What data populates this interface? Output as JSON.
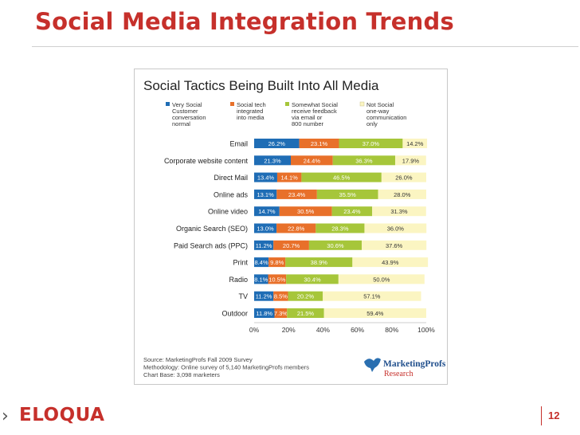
{
  "slide": {
    "title": "Social Media Integration Trends",
    "brand": "ELOQUA",
    "page_number": "12"
  },
  "colors": {
    "title_red": "#c6302b",
    "very_social": "#1f6db5",
    "social_tech": "#e8702a",
    "somewhat_social": "#a6c63a",
    "not_social": "#fbf5c2"
  },
  "icons": {
    "footer_chevron": "chevron-right-icon",
    "research_bird": "bird-icon"
  },
  "chart_data": {
    "type": "bar",
    "orientation": "horizontal",
    "stacked": true,
    "title": "Social Tactics Being Built Into All Media",
    "categories": [
      "Email",
      "Corporate website content",
      "Direct Mail",
      "Online ads",
      "Online video",
      "Organic Search (SEO)",
      "Paid Search ads (PPC)",
      "Print",
      "Radio",
      "TV",
      "Outdoor"
    ],
    "series": [
      {
        "name": "Very Social Customer conversation normal",
        "legend_lines": [
          "Very Social",
          "Customer",
          "conversation",
          "normal"
        ],
        "color": "#1f6db5",
        "values": [
          26.2,
          21.3,
          13.4,
          13.1,
          14.7,
          13.0,
          11.2,
          8.4,
          8.1,
          11.2,
          11.8
        ],
        "labels": [
          "26.2%",
          "21.3%",
          "13.4%",
          "13.1%",
          "14.7%",
          "13.0%",
          "11.2%",
          "8.4%",
          "8.1%",
          "11.2%",
          "11.8%"
        ]
      },
      {
        "name": "Social tech integrated into media",
        "legend_lines": [
          "Social tech",
          "integrated",
          "into media"
        ],
        "color": "#e8702a",
        "values": [
          23.1,
          24.4,
          14.1,
          23.4,
          30.5,
          22.8,
          20.7,
          9.8,
          10.5,
          8.5,
          7.3
        ],
        "labels": [
          "23.1%",
          "24.4%",
          "14.1%",
          "23.4%",
          "30.5%",
          "22.8%",
          "20.7%",
          "9.8%",
          "10.5%",
          "8.5%",
          "7.3%"
        ]
      },
      {
        "name": "Somewhat Social receive feedback via email or 800 number",
        "legend_lines": [
          "Somewhat Social",
          "receive feedback",
          "via email or",
          "800 number"
        ],
        "color": "#a6c63a",
        "values": [
          37.0,
          36.3,
          46.5,
          35.5,
          23.4,
          28.3,
          30.6,
          38.9,
          30.4,
          20.2,
          21.5
        ],
        "labels": [
          "37.0%",
          "36.3%",
          "46.5%",
          "35.5%",
          "23.4%",
          "28.3%",
          "30.6%",
          "38.9%",
          "30.4%",
          "20.2%",
          "21.5%"
        ]
      },
      {
        "name": "Not Social one-way communication only",
        "legend_lines": [
          "Not Social",
          "one-way",
          "communication",
          "only"
        ],
        "color": "#fbf5c2",
        "values": [
          14.2,
          17.9,
          26.0,
          28.0,
          31.3,
          36.0,
          37.6,
          43.9,
          50.0,
          57.1,
          59.4
        ],
        "labels": [
          "14.2%",
          "17.9%",
          "26.0%",
          "28.0%",
          "31.3%",
          "36.0%",
          "37.6%",
          "43.9%",
          "50.0%",
          "57.1%",
          "59.4%"
        ]
      }
    ],
    "xlim": [
      0,
      100
    ],
    "xticks": [
      "0%",
      "20%",
      "40%",
      "60%",
      "80%",
      "100%"
    ],
    "legend_position": "top",
    "source_lines": [
      "Source: MarketingProfs Fall 2009 Survey",
      "Methodology: Online survey of 5,140 MarketingProfs members",
      "Chart Base: 3,098 marketers"
    ],
    "logo": {
      "name": "MarketingProfs",
      "sub": "Research"
    }
  }
}
